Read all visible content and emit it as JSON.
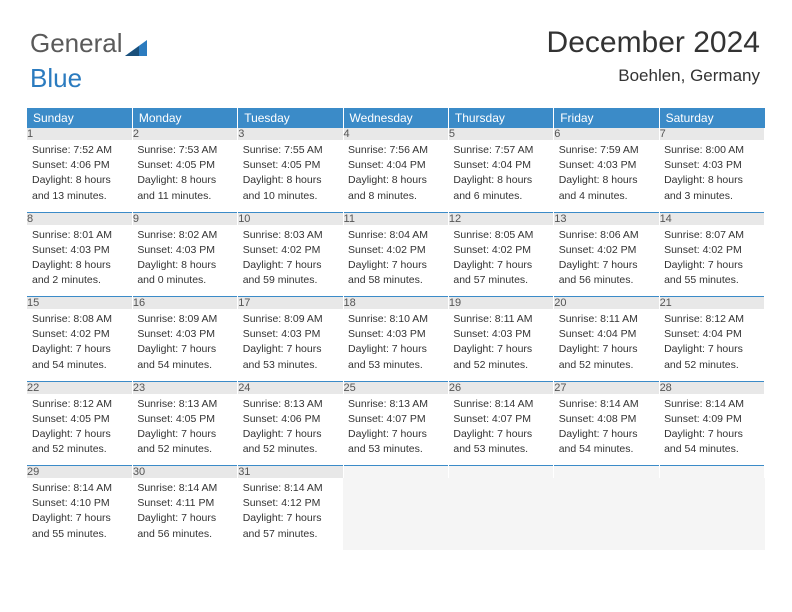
{
  "brand": {
    "part1": "General",
    "part2": "Blue"
  },
  "header": {
    "title": "December 2024",
    "location": "Boehlen, Germany"
  },
  "colors": {
    "header_band": "#3b8bc8",
    "daynum_bg": "#e8e8e8",
    "row_border": "#3b8bc8",
    "text": "#333333",
    "logo_gray": "#5a5a5a",
    "logo_blue": "#2b7bbf"
  },
  "weekdays": [
    "Sunday",
    "Monday",
    "Tuesday",
    "Wednesday",
    "Thursday",
    "Friday",
    "Saturday"
  ],
  "weeks": [
    [
      {
        "n": "1",
        "sr": "7:52 AM",
        "ss": "4:06 PM",
        "dl": "8 hours and 13 minutes."
      },
      {
        "n": "2",
        "sr": "7:53 AM",
        "ss": "4:05 PM",
        "dl": "8 hours and 11 minutes."
      },
      {
        "n": "3",
        "sr": "7:55 AM",
        "ss": "4:05 PM",
        "dl": "8 hours and 10 minutes."
      },
      {
        "n": "4",
        "sr": "7:56 AM",
        "ss": "4:04 PM",
        "dl": "8 hours and 8 minutes."
      },
      {
        "n": "5",
        "sr": "7:57 AM",
        "ss": "4:04 PM",
        "dl": "8 hours and 6 minutes."
      },
      {
        "n": "6",
        "sr": "7:59 AM",
        "ss": "4:03 PM",
        "dl": "8 hours and 4 minutes."
      },
      {
        "n": "7",
        "sr": "8:00 AM",
        "ss": "4:03 PM",
        "dl": "8 hours and 3 minutes."
      }
    ],
    [
      {
        "n": "8",
        "sr": "8:01 AM",
        "ss": "4:03 PM",
        "dl": "8 hours and 2 minutes."
      },
      {
        "n": "9",
        "sr": "8:02 AM",
        "ss": "4:03 PM",
        "dl": "8 hours and 0 minutes."
      },
      {
        "n": "10",
        "sr": "8:03 AM",
        "ss": "4:02 PM",
        "dl": "7 hours and 59 minutes."
      },
      {
        "n": "11",
        "sr": "8:04 AM",
        "ss": "4:02 PM",
        "dl": "7 hours and 58 minutes."
      },
      {
        "n": "12",
        "sr": "8:05 AM",
        "ss": "4:02 PM",
        "dl": "7 hours and 57 minutes."
      },
      {
        "n": "13",
        "sr": "8:06 AM",
        "ss": "4:02 PM",
        "dl": "7 hours and 56 minutes."
      },
      {
        "n": "14",
        "sr": "8:07 AM",
        "ss": "4:02 PM",
        "dl": "7 hours and 55 minutes."
      }
    ],
    [
      {
        "n": "15",
        "sr": "8:08 AM",
        "ss": "4:02 PM",
        "dl": "7 hours and 54 minutes."
      },
      {
        "n": "16",
        "sr": "8:09 AM",
        "ss": "4:03 PM",
        "dl": "7 hours and 54 minutes."
      },
      {
        "n": "17",
        "sr": "8:09 AM",
        "ss": "4:03 PM",
        "dl": "7 hours and 53 minutes."
      },
      {
        "n": "18",
        "sr": "8:10 AM",
        "ss": "4:03 PM",
        "dl": "7 hours and 53 minutes."
      },
      {
        "n": "19",
        "sr": "8:11 AM",
        "ss": "4:03 PM",
        "dl": "7 hours and 52 minutes."
      },
      {
        "n": "20",
        "sr": "8:11 AM",
        "ss": "4:04 PM",
        "dl": "7 hours and 52 minutes."
      },
      {
        "n": "21",
        "sr": "8:12 AM",
        "ss": "4:04 PM",
        "dl": "7 hours and 52 minutes."
      }
    ],
    [
      {
        "n": "22",
        "sr": "8:12 AM",
        "ss": "4:05 PM",
        "dl": "7 hours and 52 minutes."
      },
      {
        "n": "23",
        "sr": "8:13 AM",
        "ss": "4:05 PM",
        "dl": "7 hours and 52 minutes."
      },
      {
        "n": "24",
        "sr": "8:13 AM",
        "ss": "4:06 PM",
        "dl": "7 hours and 52 minutes."
      },
      {
        "n": "25",
        "sr": "8:13 AM",
        "ss": "4:07 PM",
        "dl": "7 hours and 53 minutes."
      },
      {
        "n": "26",
        "sr": "8:14 AM",
        "ss": "4:07 PM",
        "dl": "7 hours and 53 minutes."
      },
      {
        "n": "27",
        "sr": "8:14 AM",
        "ss": "4:08 PM",
        "dl": "7 hours and 54 minutes."
      },
      {
        "n": "28",
        "sr": "8:14 AM",
        "ss": "4:09 PM",
        "dl": "7 hours and 54 minutes."
      }
    ],
    [
      {
        "n": "29",
        "sr": "8:14 AM",
        "ss": "4:10 PM",
        "dl": "7 hours and 55 minutes."
      },
      {
        "n": "30",
        "sr": "8:14 AM",
        "ss": "4:11 PM",
        "dl": "7 hours and 56 minutes."
      },
      {
        "n": "31",
        "sr": "8:14 AM",
        "ss": "4:12 PM",
        "dl": "7 hours and 57 minutes."
      },
      null,
      null,
      null,
      null
    ]
  ],
  "labels": {
    "sunrise": "Sunrise:",
    "sunset": "Sunset:",
    "daylight": "Daylight:"
  }
}
